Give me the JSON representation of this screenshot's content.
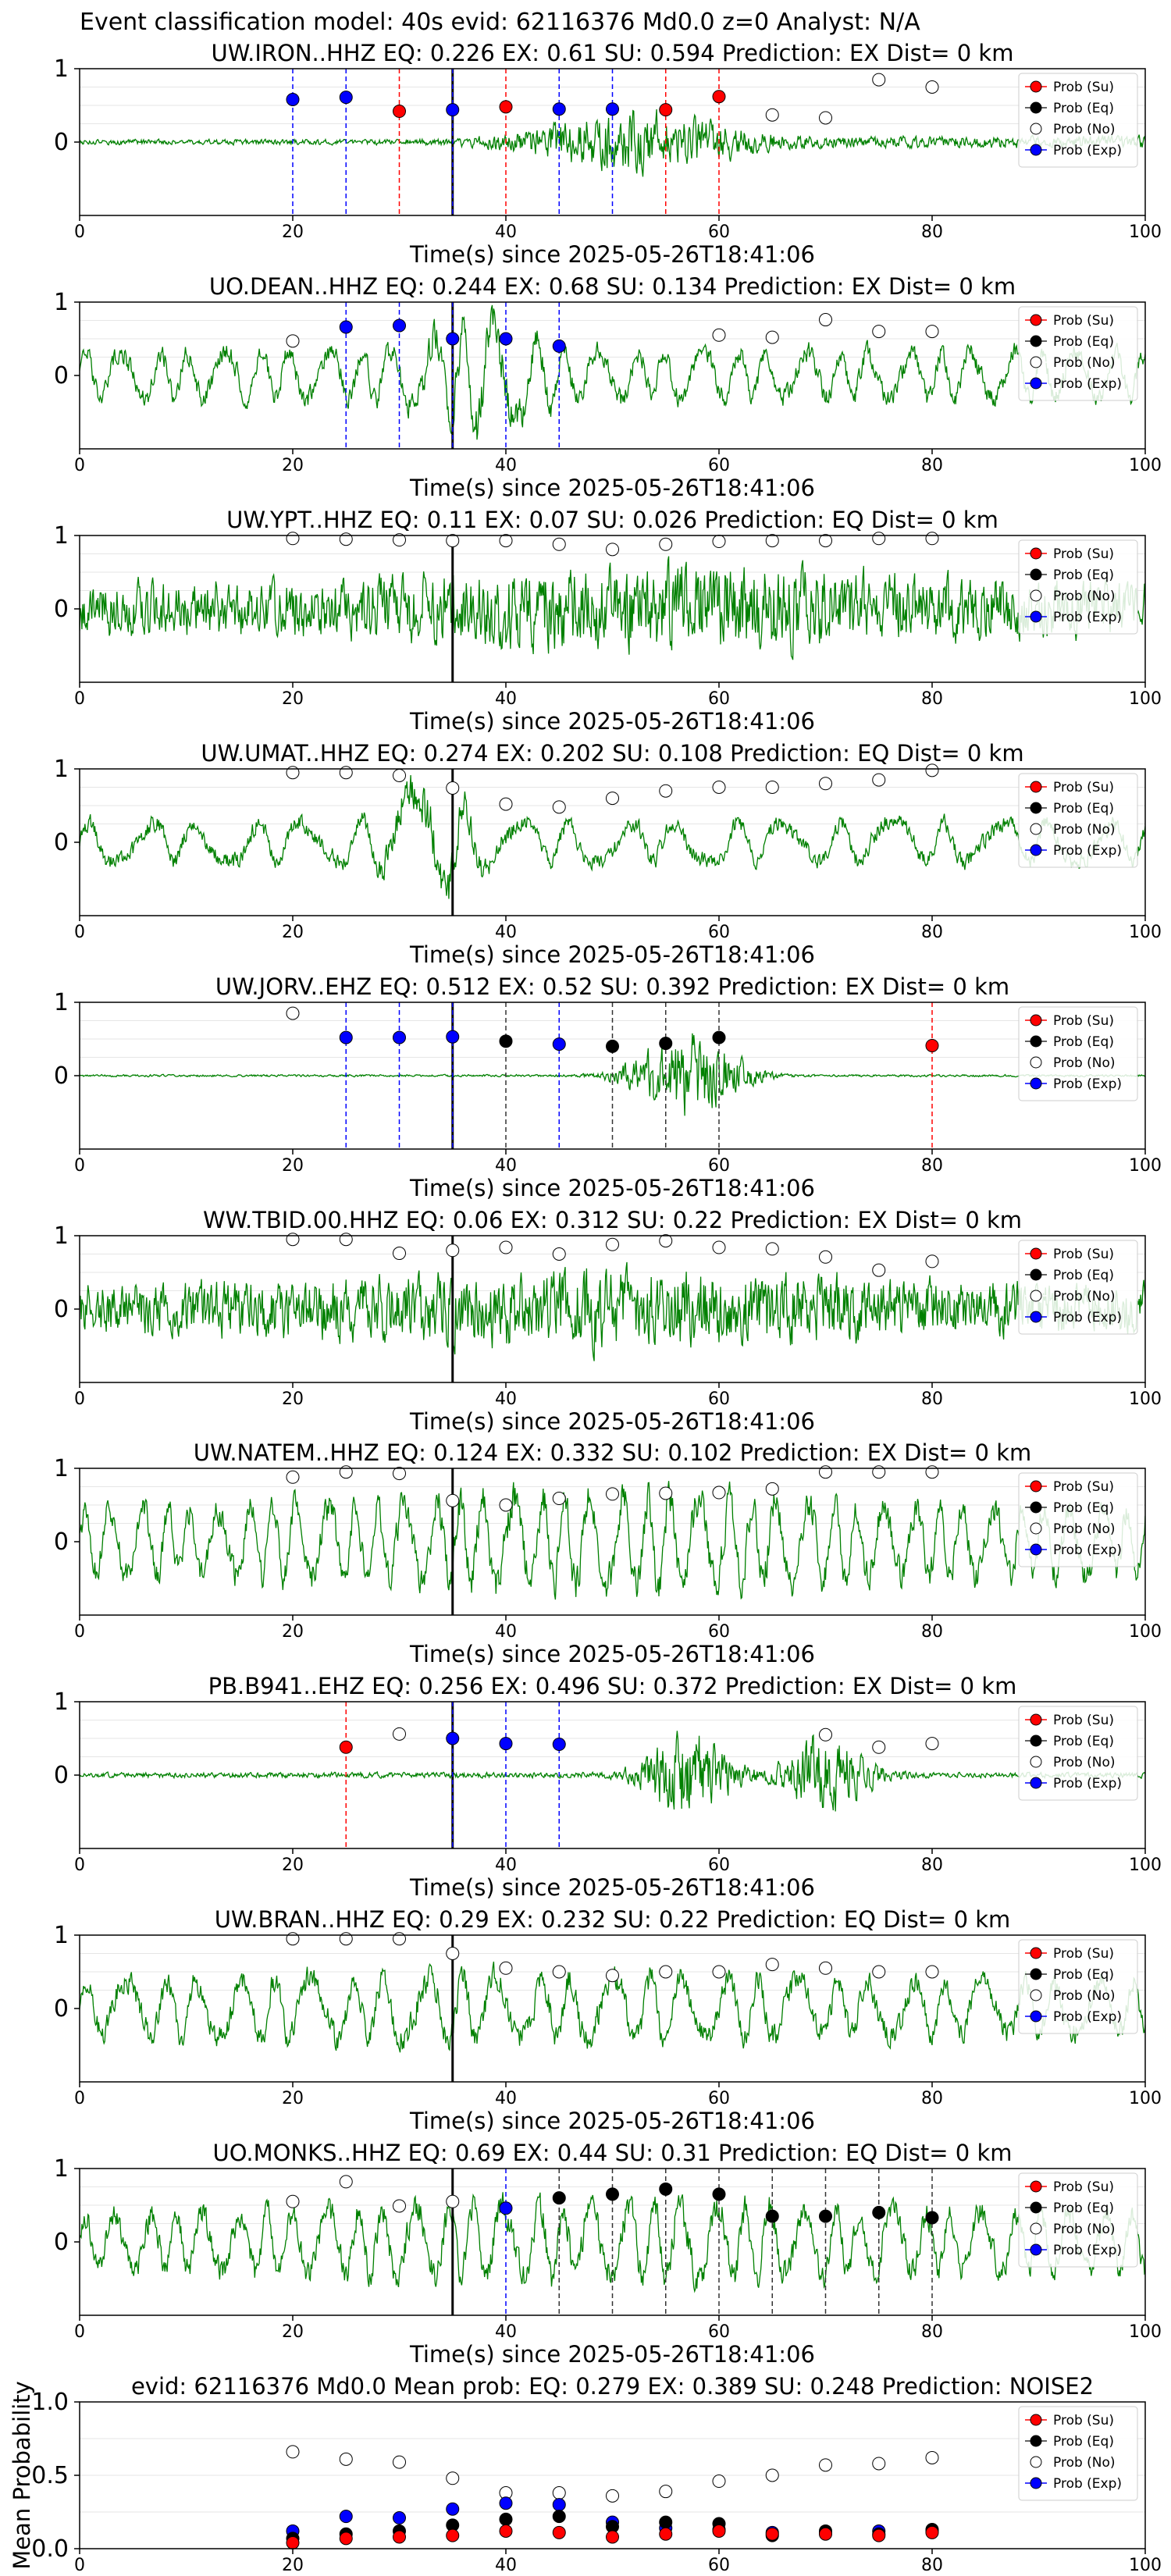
{
  "figure_title": "Event classification model: 40s evid: 62116376 Md0.0 z=0 Analyst: N/A",
  "xlabel": "Time(s) since 2025-05-26T18:41:06",
  "legend": [
    "Prob (Su)",
    "Prob (Eq)",
    "Prob (No)",
    "Prob (Exp)"
  ],
  "colors": {
    "waveform": "#008000",
    "su": "#ff0000",
    "eq": "#000000",
    "no": "#ffffff",
    "exp": "#0000ff",
    "line_su": "#ff0000",
    "line_eq": "#333333",
    "line_exp": "#0000ff",
    "origin_line": "#000000"
  },
  "chart_data": [
    {
      "type": "line",
      "title": "UW.IRON..HHZ   EQ: 0.226  EX: 0.61  SU: 0.594   Prediction: EX    Dist= 0 km",
      "xlim": [
        0,
        100
      ],
      "ylim": [
        -1,
        1
      ],
      "xticks": [
        0,
        20,
        40,
        60,
        80,
        100
      ],
      "yticks": [
        0,
        1
      ],
      "origin_time": 35,
      "waveform": {
        "seed": 1,
        "style": "growing",
        "center": 52,
        "width": 10,
        "amp": 0.5,
        "base": 0.05,
        "period": 0
      },
      "points": [
        {
          "x": 20,
          "y": 0.58,
          "cls": "exp"
        },
        {
          "x": 25,
          "y": 0.61,
          "cls": "exp"
        },
        {
          "x": 30,
          "y": 0.42,
          "cls": "su"
        },
        {
          "x": 35,
          "y": 0.44,
          "cls": "exp"
        },
        {
          "x": 40,
          "y": 0.48,
          "cls": "su"
        },
        {
          "x": 45,
          "y": 0.45,
          "cls": "exp"
        },
        {
          "x": 50,
          "y": 0.45,
          "cls": "exp"
        },
        {
          "x": 55,
          "y": 0.44,
          "cls": "su"
        },
        {
          "x": 60,
          "y": 0.62,
          "cls": "su"
        },
        {
          "x": 65,
          "y": 0.37,
          "cls": "no"
        },
        {
          "x": 70,
          "y": 0.33,
          "cls": "no"
        },
        {
          "x": 75,
          "y": 0.85,
          "cls": "no"
        },
        {
          "x": 80,
          "y": 0.75,
          "cls": "no"
        }
      ]
    },
    {
      "type": "line",
      "title": "UO.DEAN..HHZ   EQ: 0.244  EX: 0.68  SU: 0.134   Prediction: EX    Dist= 0 km",
      "xlim": [
        0,
        100
      ],
      "ylim": [
        -1,
        1
      ],
      "xticks": [
        0,
        20,
        40,
        60,
        80,
        100
      ],
      "yticks": [
        0,
        1
      ],
      "origin_time": 35,
      "waveform": {
        "seed": 2,
        "style": "oscillating",
        "center": 38,
        "width": 6,
        "amp": 0.45,
        "base": 0.35,
        "period": 3.2
      },
      "points": [
        {
          "x": 20,
          "y": 0.47,
          "cls": "no"
        },
        {
          "x": 25,
          "y": 0.66,
          "cls": "exp"
        },
        {
          "x": 30,
          "y": 0.68,
          "cls": "exp"
        },
        {
          "x": 35,
          "y": 0.5,
          "cls": "exp"
        },
        {
          "x": 40,
          "y": 0.5,
          "cls": "exp"
        },
        {
          "x": 45,
          "y": 0.4,
          "cls": "exp"
        },
        {
          "x": 60,
          "y": 0.55,
          "cls": "no"
        },
        {
          "x": 65,
          "y": 0.52,
          "cls": "no"
        },
        {
          "x": 70,
          "y": 0.76,
          "cls": "no"
        },
        {
          "x": 75,
          "y": 0.6,
          "cls": "no"
        },
        {
          "x": 80,
          "y": 0.6,
          "cls": "no"
        }
      ]
    },
    {
      "type": "line",
      "title": "UW.YPT..HHZ   EQ: 0.11  EX: 0.07  SU: 0.026   Prediction: EQ    Dist= 0 km",
      "xlim": [
        0,
        100
      ],
      "ylim": [
        -1,
        1
      ],
      "xticks": [
        0,
        20,
        40,
        60,
        80,
        100
      ],
      "yticks": [
        0,
        1
      ],
      "origin_time": 35,
      "waveform": {
        "seed": 3,
        "style": "noisy",
        "center": 55,
        "width": 25,
        "amp": 0.35,
        "base": 0.5,
        "period": 0
      },
      "points": [
        {
          "x": 20,
          "y": 0.96,
          "cls": "no"
        },
        {
          "x": 25,
          "y": 0.95,
          "cls": "no"
        },
        {
          "x": 30,
          "y": 0.94,
          "cls": "no"
        },
        {
          "x": 35,
          "y": 0.93,
          "cls": "no"
        },
        {
          "x": 40,
          "y": 0.93,
          "cls": "no"
        },
        {
          "x": 45,
          "y": 0.88,
          "cls": "no"
        },
        {
          "x": 50,
          "y": 0.81,
          "cls": "no"
        },
        {
          "x": 55,
          "y": 0.88,
          "cls": "no"
        },
        {
          "x": 60,
          "y": 0.92,
          "cls": "no"
        },
        {
          "x": 65,
          "y": 0.93,
          "cls": "no"
        },
        {
          "x": 70,
          "y": 0.93,
          "cls": "no"
        },
        {
          "x": 75,
          "y": 0.96,
          "cls": "no"
        },
        {
          "x": 80,
          "y": 0.96,
          "cls": "no"
        }
      ]
    },
    {
      "type": "line",
      "title": "UW.UMAT..HHZ   EQ: 0.274  EX: 0.202  SU: 0.108   Prediction: EQ    Dist= 0 km",
      "xlim": [
        0,
        100
      ],
      "ylim": [
        -1,
        1
      ],
      "xticks": [
        0,
        20,
        40,
        60,
        80,
        100
      ],
      "yticks": [
        0,
        1
      ],
      "origin_time": 35,
      "waveform": {
        "seed": 4,
        "style": "oscillating",
        "center": 33,
        "width": 4,
        "amp": 0.55,
        "base": 0.3,
        "period": 5
      },
      "points": [
        {
          "x": 20,
          "y": 0.95,
          "cls": "no"
        },
        {
          "x": 25,
          "y": 0.95,
          "cls": "no"
        },
        {
          "x": 30,
          "y": 0.91,
          "cls": "no"
        },
        {
          "x": 35,
          "y": 0.74,
          "cls": "no"
        },
        {
          "x": 40,
          "y": 0.52,
          "cls": "no"
        },
        {
          "x": 45,
          "y": 0.48,
          "cls": "no"
        },
        {
          "x": 50,
          "y": 0.6,
          "cls": "no"
        },
        {
          "x": 55,
          "y": 0.7,
          "cls": "no"
        },
        {
          "x": 60,
          "y": 0.75,
          "cls": "no"
        },
        {
          "x": 65,
          "y": 0.75,
          "cls": "no"
        },
        {
          "x": 70,
          "y": 0.8,
          "cls": "no"
        },
        {
          "x": 75,
          "y": 0.85,
          "cls": "no"
        },
        {
          "x": 80,
          "y": 0.98,
          "cls": "no"
        }
      ]
    },
    {
      "type": "line",
      "title": "UW.JORV..EHZ   EQ: 0.512  EX: 0.52  SU: 0.392   Prediction: EX    Dist= 0 km",
      "xlim": [
        0,
        100
      ],
      "ylim": [
        -1,
        1
      ],
      "xticks": [
        0,
        20,
        40,
        60,
        80,
        100
      ],
      "yticks": [
        0,
        1
      ],
      "origin_time": 35,
      "waveform": {
        "seed": 5,
        "style": "burst",
        "center": 57,
        "width": 5,
        "amp": 0.8,
        "base": 0.02,
        "period": 0
      },
      "points": [
        {
          "x": 20,
          "y": 0.85,
          "cls": "no"
        },
        {
          "x": 25,
          "y": 0.52,
          "cls": "exp"
        },
        {
          "x": 30,
          "y": 0.52,
          "cls": "exp"
        },
        {
          "x": 35,
          "y": 0.53,
          "cls": "exp"
        },
        {
          "x": 40,
          "y": 0.47,
          "cls": "eq"
        },
        {
          "x": 45,
          "y": 0.43,
          "cls": "exp"
        },
        {
          "x": 50,
          "y": 0.4,
          "cls": "eq"
        },
        {
          "x": 55,
          "y": 0.44,
          "cls": "eq"
        },
        {
          "x": 60,
          "y": 0.52,
          "cls": "eq"
        },
        {
          "x": 80,
          "y": 0.41,
          "cls": "su"
        }
      ]
    },
    {
      "type": "line",
      "title": "WW.TBID.00.HHZ   EQ: 0.06  EX: 0.312  SU: 0.22   Prediction: EX    Dist= 0 km",
      "xlim": [
        0,
        100
      ],
      "ylim": [
        -1,
        1
      ],
      "xticks": [
        0,
        20,
        40,
        60,
        80,
        100
      ],
      "yticks": [
        0,
        1
      ],
      "origin_time": 35,
      "waveform": {
        "seed": 6,
        "style": "noisy",
        "center": 50,
        "width": 30,
        "amp": 0.3,
        "base": 0.45,
        "period": 0
      },
      "points": [
        {
          "x": 20,
          "y": 0.95,
          "cls": "no"
        },
        {
          "x": 25,
          "y": 0.95,
          "cls": "no"
        },
        {
          "x": 30,
          "y": 0.76,
          "cls": "no"
        },
        {
          "x": 35,
          "y": 0.8,
          "cls": "no"
        },
        {
          "x": 40,
          "y": 0.84,
          "cls": "no"
        },
        {
          "x": 45,
          "y": 0.75,
          "cls": "no"
        },
        {
          "x": 50,
          "y": 0.88,
          "cls": "no"
        },
        {
          "x": 55,
          "y": 0.93,
          "cls": "no"
        },
        {
          "x": 60,
          "y": 0.84,
          "cls": "no"
        },
        {
          "x": 65,
          "y": 0.82,
          "cls": "no"
        },
        {
          "x": 70,
          "y": 0.71,
          "cls": "no"
        },
        {
          "x": 75,
          "y": 0.53,
          "cls": "no"
        },
        {
          "x": 80,
          "y": 0.65,
          "cls": "no"
        }
      ]
    },
    {
      "type": "line",
      "title": "UW.NATEM..HHZ   EQ: 0.124  EX: 0.332  SU: 0.102   Prediction: EX    Dist= 0 km",
      "xlim": [
        0,
        100
      ],
      "ylim": [
        -1,
        1
      ],
      "xticks": [
        0,
        20,
        40,
        60,
        80,
        100
      ],
      "yticks": [
        0,
        1
      ],
      "origin_time": 35,
      "waveform": {
        "seed": 7,
        "style": "oscillating",
        "center": 50,
        "width": 30,
        "amp": 0.2,
        "base": 0.45,
        "period": 2.5
      },
      "points": [
        {
          "x": 20,
          "y": 0.88,
          "cls": "no"
        },
        {
          "x": 25,
          "y": 0.95,
          "cls": "no"
        },
        {
          "x": 30,
          "y": 0.93,
          "cls": "no"
        },
        {
          "x": 35,
          "y": 0.56,
          "cls": "no"
        },
        {
          "x": 40,
          "y": 0.5,
          "cls": "no"
        },
        {
          "x": 45,
          "y": 0.59,
          "cls": "no"
        },
        {
          "x": 50,
          "y": 0.65,
          "cls": "no"
        },
        {
          "x": 55,
          "y": 0.66,
          "cls": "no"
        },
        {
          "x": 60,
          "y": 0.67,
          "cls": "no"
        },
        {
          "x": 65,
          "y": 0.72,
          "cls": "no"
        },
        {
          "x": 70,
          "y": 0.95,
          "cls": "no"
        },
        {
          "x": 75,
          "y": 0.95,
          "cls": "no"
        },
        {
          "x": 80,
          "y": 0.95,
          "cls": "no"
        }
      ]
    },
    {
      "type": "line",
      "title": "PB.B941..EHZ   EQ: 0.256  EX: 0.496  SU: 0.372   Prediction: EX    Dist= 0 km",
      "xlim": [
        0,
        100
      ],
      "ylim": [
        -1,
        1
      ],
      "xticks": [
        0,
        20,
        40,
        60,
        80,
        100
      ],
      "yticks": [
        0,
        1
      ],
      "origin_time": 35,
      "waveform": {
        "seed": 8,
        "style": "double",
        "center": 57,
        "width": 4,
        "amp": 0.8,
        "base": 0.05,
        "period": 0
      },
      "points": [
        {
          "x": 25,
          "y": 0.38,
          "cls": "su"
        },
        {
          "x": 30,
          "y": 0.56,
          "cls": "no"
        },
        {
          "x": 35,
          "y": 0.5,
          "cls": "exp"
        },
        {
          "x": 40,
          "y": 0.43,
          "cls": "exp"
        },
        {
          "x": 45,
          "y": 0.42,
          "cls": "exp"
        },
        {
          "x": 70,
          "y": 0.55,
          "cls": "no"
        },
        {
          "x": 75,
          "y": 0.38,
          "cls": "no"
        },
        {
          "x": 80,
          "y": 0.43,
          "cls": "no"
        }
      ]
    },
    {
      "type": "line",
      "title": "UW.BRAN..HHZ   EQ: 0.29  EX: 0.232  SU: 0.22   Prediction: EQ    Dist= 0 km",
      "xlim": [
        0,
        100
      ],
      "ylim": [
        -1,
        1
      ],
      "xticks": [
        0,
        20,
        40,
        60,
        80,
        100
      ],
      "yticks": [
        0,
        1
      ],
      "origin_time": 35,
      "waveform": {
        "seed": 9,
        "style": "oscillating",
        "center": 40,
        "width": 30,
        "amp": 0.1,
        "base": 0.38,
        "period": 3.5
      },
      "points": [
        {
          "x": 20,
          "y": 0.95,
          "cls": "no"
        },
        {
          "x": 25,
          "y": 0.95,
          "cls": "no"
        },
        {
          "x": 30,
          "y": 0.95,
          "cls": "no"
        },
        {
          "x": 35,
          "y": 0.75,
          "cls": "no"
        },
        {
          "x": 40,
          "y": 0.55,
          "cls": "no"
        },
        {
          "x": 45,
          "y": 0.5,
          "cls": "no"
        },
        {
          "x": 50,
          "y": 0.45,
          "cls": "no"
        },
        {
          "x": 55,
          "y": 0.5,
          "cls": "no"
        },
        {
          "x": 60,
          "y": 0.5,
          "cls": "no"
        },
        {
          "x": 65,
          "y": 0.6,
          "cls": "no"
        },
        {
          "x": 70,
          "y": 0.55,
          "cls": "no"
        },
        {
          "x": 75,
          "y": 0.5,
          "cls": "no"
        },
        {
          "x": 80,
          "y": 0.5,
          "cls": "no"
        }
      ]
    },
    {
      "type": "line",
      "title": "UO.MONKS..HHZ   EQ: 0.69  EX: 0.44  SU: 0.31   Prediction: EQ    Dist= 0 km",
      "xlim": [
        0,
        100
      ],
      "ylim": [
        -1,
        1
      ],
      "xticks": [
        0,
        20,
        40,
        60,
        80,
        100
      ],
      "yticks": [
        0,
        1
      ],
      "origin_time": 35,
      "waveform": {
        "seed": 10,
        "style": "oscillating",
        "center": 50,
        "width": 30,
        "amp": 0.15,
        "base": 0.4,
        "period": 2.8
      },
      "points": [
        {
          "x": 20,
          "y": 0.55,
          "cls": "no"
        },
        {
          "x": 25,
          "y": 0.82,
          "cls": "no"
        },
        {
          "x": 30,
          "y": 0.49,
          "cls": "no"
        },
        {
          "x": 35,
          "y": 0.55,
          "cls": "no"
        },
        {
          "x": 40,
          "y": 0.46,
          "cls": "exp"
        },
        {
          "x": 45,
          "y": 0.6,
          "cls": "eq"
        },
        {
          "x": 50,
          "y": 0.65,
          "cls": "eq"
        },
        {
          "x": 55,
          "y": 0.72,
          "cls": "eq"
        },
        {
          "x": 60,
          "y": 0.65,
          "cls": "eq"
        },
        {
          "x": 65,
          "y": 0.35,
          "cls": "eq"
        },
        {
          "x": 70,
          "y": 0.35,
          "cls": "eq"
        },
        {
          "x": 75,
          "y": 0.4,
          "cls": "eq"
        },
        {
          "x": 80,
          "y": 0.33,
          "cls": "eq"
        }
      ]
    },
    {
      "type": "scatter",
      "title": "evid: 62116376  Md0.0   Mean prob:   EQ: 0.279  EX: 0.389  SU: 0.248   Prediction: NOISE2",
      "ylabel": "Mean Probability",
      "xlim": [
        0,
        100
      ],
      "ylim": [
        0,
        1
      ],
      "xticks": [
        0,
        20,
        40,
        60,
        80,
        100
      ],
      "yticks": [
        0,
        0.5,
        1
      ],
      "ytick_labels": [
        "0.0",
        "0.5",
        "1.0"
      ],
      "x": [
        20,
        25,
        30,
        35,
        40,
        45,
        50,
        55,
        60,
        65,
        70,
        75,
        80
      ],
      "series": [
        {
          "name": "Prob (No)",
          "cls": "no",
          "values": [
            0.66,
            0.61,
            0.59,
            0.48,
            0.38,
            0.38,
            0.36,
            0.39,
            0.46,
            0.5,
            0.57,
            0.58,
            0.62
          ]
        },
        {
          "name": "Prob (Exp)",
          "cls": "exp",
          "values": [
            0.12,
            0.22,
            0.21,
            0.27,
            0.31,
            0.3,
            0.18,
            0.14,
            0.13,
            0.11,
            0.11,
            0.12,
            0.12
          ]
        },
        {
          "name": "Prob (Eq)",
          "cls": "eq",
          "values": [
            0.07,
            0.1,
            0.12,
            0.16,
            0.2,
            0.22,
            0.15,
            0.18,
            0.17,
            0.09,
            0.12,
            0.1,
            0.13
          ]
        },
        {
          "name": "Prob (Su)",
          "cls": "su",
          "values": [
            0.04,
            0.07,
            0.08,
            0.09,
            0.12,
            0.11,
            0.08,
            0.1,
            0.12,
            0.1,
            0.1,
            0.09,
            0.11
          ]
        }
      ]
    }
  ]
}
